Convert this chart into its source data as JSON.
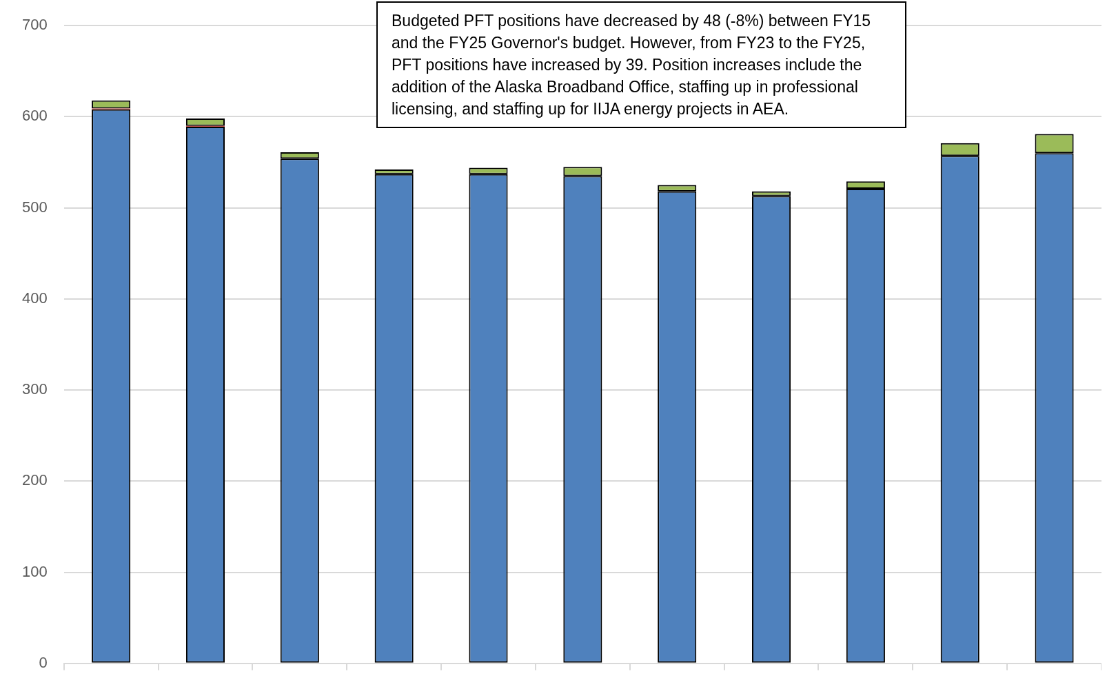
{
  "chart_data": {
    "type": "bar",
    "stacked": true,
    "categories": [
      null,
      null,
      null,
      null,
      null,
      null,
      null,
      null,
      null,
      null,
      null
    ],
    "series": [
      {
        "color": "#4f81bd",
        "values": [
          608,
          589,
          554,
          537,
          537,
          535,
          518,
          513,
          521,
          557,
          560
        ]
      },
      {
        "color": "#c0504d",
        "values": [
          1,
          1,
          null,
          null,
          null,
          null,
          null,
          null,
          null,
          null,
          null
        ]
      },
      {
        "color": "#9bbb59",
        "values": [
          9,
          8,
          7,
          5,
          7,
          10,
          7,
          5,
          8,
          14,
          21
        ]
      }
    ],
    "ylim": [
      0,
      700
    ],
    "yticks": [
      0,
      100,
      200,
      300,
      400,
      500,
      600,
      700
    ],
    "grid": "y",
    "annotations": [
      "Budgeted PFT positions have decreased by 48 (-8%) between FY15 and the FY25 Governor's budget.  However, from FY23 to the FY25, PFT positions have increased by 39.  Position increases include the addition of the Alaska Broadband Office, staffing up in professional licensing, and staffing up for IIJA energy projects in AEA."
    ]
  }
}
